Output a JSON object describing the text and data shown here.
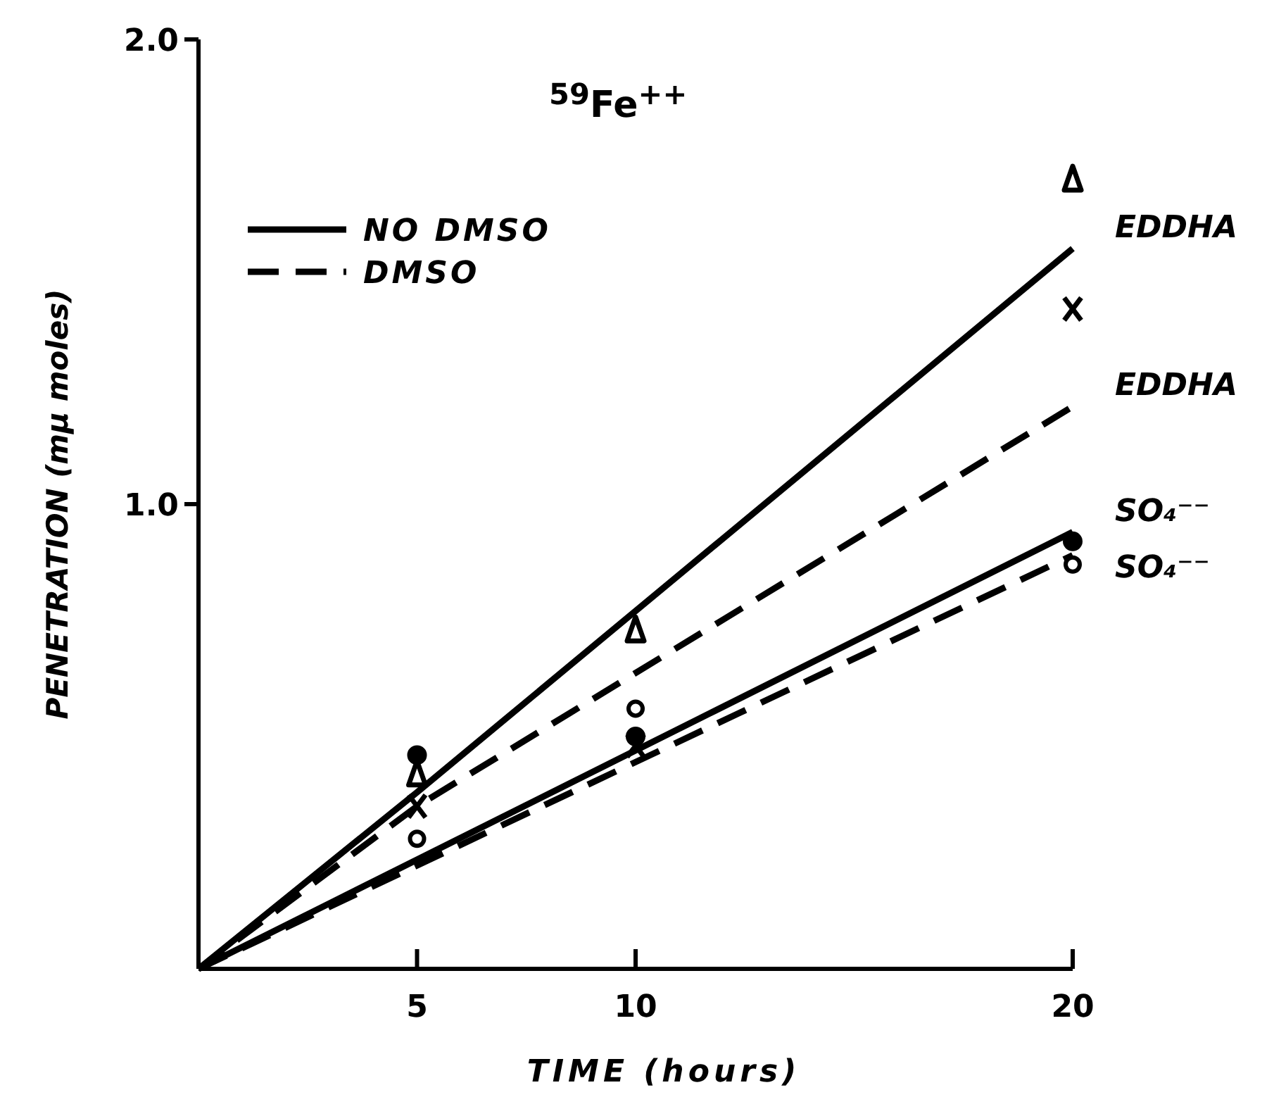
{
  "chart_data": {
    "type": "line",
    "title": "$^{59}$Fe$^{++}$",
    "xlabel": "TIME (hours)",
    "ylabel": "PENETRATION (mμ moles)",
    "xlim": [
      0,
      20
    ],
    "xticks": [
      5,
      10,
      20
    ],
    "ylim": [
      0,
      2
    ],
    "yticks": [
      {
        "value": 1,
        "label": "1.0"
      },
      {
        "value": 2,
        "label": "2.0"
      }
    ],
    "grid": false,
    "annotations": [
      "NO DMSO",
      "DMSO"
    ],
    "series": [
      {
        "name": "EDDHA",
        "color": "#000000",
        "line_style": "solid",
        "x": [
          0,
          5,
          20
        ],
        "values": [
          0,
          0.38,
          1.55
        ]
      },
      {
        "name": "EDDHA",
        "color": "#000000",
        "line_style": "dashed",
        "x": [
          0,
          5,
          20
        ],
        "values": [
          0,
          0.35,
          1.21
        ]
      },
      {
        "name": "SO₄⁻⁻",
        "color": "#000000",
        "line_style": "solid",
        "x": [
          0,
          20
        ],
        "values": [
          0,
          0.94
        ]
      },
      {
        "name": "SO₄⁻⁻",
        "color": "#000000",
        "line_style": "dashed",
        "x": [
          0,
          20
        ],
        "values": [
          0,
          0.89
        ]
      },
      {
        "type": "scatter",
        "color": "#000000",
        "marker": "triangle",
        "x": [
          5,
          10,
          20
        ],
        "values": [
          0.42,
          0.73,
          1.7
        ]
      },
      {
        "type": "scatter",
        "color": "#000000",
        "marker": "cross",
        "x": [
          5,
          10,
          20
        ],
        "values": [
          0.35,
          0.48,
          1.42
        ]
      },
      {
        "type": "scatter",
        "color": "#000000",
        "marker": "circle",
        "x": [
          5,
          10,
          20
        ],
        "values": [
          0.46,
          0.5,
          0.92
        ]
      },
      {
        "type": "scatter",
        "color": "#000000",
        "marker": "circle",
        "x": [
          5,
          10,
          20
        ],
        "values": [
          0.28,
          0.56,
          0.87
        ]
      }
    ]
  }
}
